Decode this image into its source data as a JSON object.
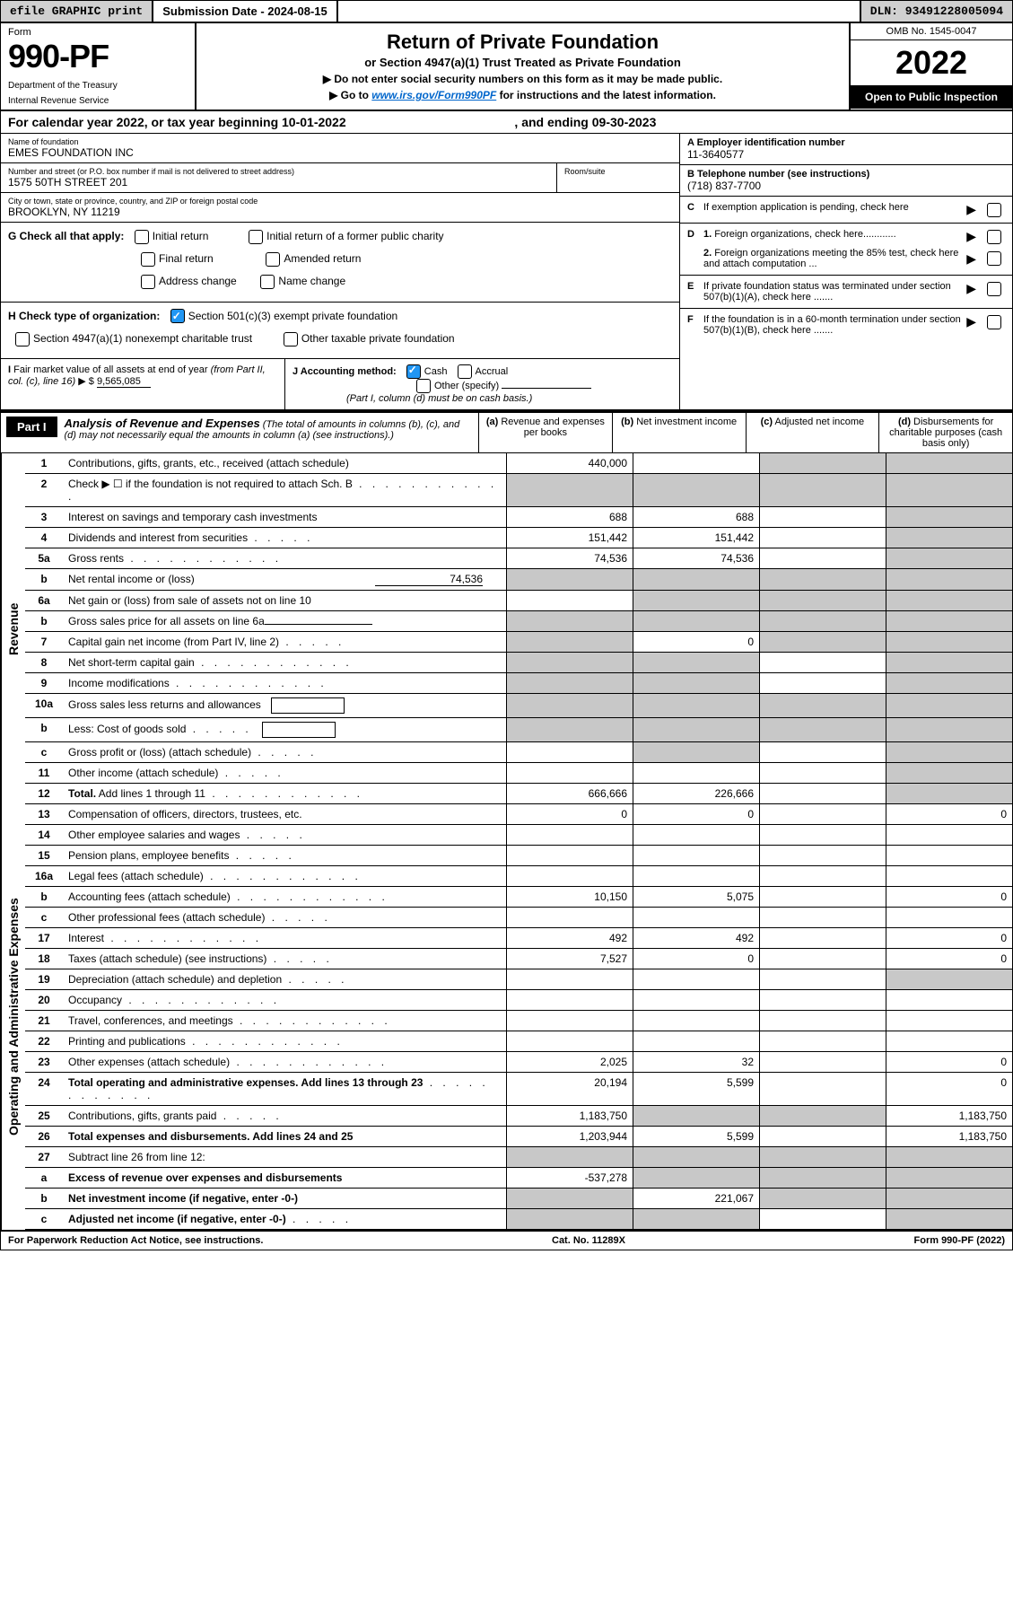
{
  "colors": {
    "page_bg": "#ffffff",
    "text": "#000000",
    "shaded_cell": "#c8c8c8",
    "top_bar_bg": "#d0d0d0",
    "link": "#0066cc",
    "checkbox_checked": "#2196f3",
    "black": "#000000",
    "white": "#ffffff"
  },
  "top_bar": {
    "efile": "efile GRAPHIC print",
    "submission": "Submission Date - 2024-08-15",
    "dln": "DLN: 93491228005094"
  },
  "header": {
    "form_label": "Form",
    "form_number": "990-PF",
    "dept": "Department of the Treasury",
    "irs": "Internal Revenue Service",
    "title": "Return of Private Foundation",
    "subtitle": "or Section 4947(a)(1) Trust Treated as Private Foundation",
    "instr1": "▶ Do not enter social security numbers on this form as it may be made public.",
    "instr2_prefix": "▶ Go to ",
    "instr2_link": "www.irs.gov/Form990PF",
    "instr2_suffix": " for instructions and the latest information.",
    "omb": "OMB No. 1545-0047",
    "year": "2022",
    "open": "Open to Public Inspection"
  },
  "cal_year": {
    "prefix": "For calendar year 2022, or tax year beginning ",
    "begin": "10-01-2022",
    "middle": " , and ending ",
    "end": "09-30-2023"
  },
  "org": {
    "name_label": "Name of foundation",
    "name": "EMES FOUNDATION INC",
    "addr_label": "Number and street (or P.O. box number if mail is not delivered to street address)",
    "addr": "1575 50TH STREET 201",
    "room_label": "Room/suite",
    "city_label": "City or town, state or province, country, and ZIP or foreign postal code",
    "city": "BROOKLYN, NY  11219"
  },
  "right_info": {
    "a_label": "A Employer identification number",
    "a_value": "11-3640577",
    "b_label": "B Telephone number (see instructions)",
    "b_value": "(718) 837-7700",
    "c_text": "If exemption application is pending, check here",
    "d1_text": "Foreign organizations, check here............",
    "d2_text": "Foreign organizations meeting the 85% test, check here and attach computation ...",
    "e_text": "If private foundation status was terminated under section 507(b)(1)(A), check here .......",
    "f_text": "If the foundation is in a 60-month termination under section 507(b)(1)(B), check here ......."
  },
  "g": {
    "label": "G Check all that apply:",
    "initial_return": "Initial return",
    "initial_former": "Initial return of a former public charity",
    "final_return": "Final return",
    "amended": "Amended return",
    "address_change": "Address change",
    "name_change": "Name change"
  },
  "h": {
    "label": "H Check type of organization:",
    "opt1": "Section 501(c)(3) exempt private foundation",
    "opt2": "Section 4947(a)(1) nonexempt charitable trust",
    "opt3": "Other taxable private foundation"
  },
  "i": {
    "label": "I Fair market value of all assets at end of year (from Part II, col. (c), line 16) ▶ $",
    "value": "9,565,085"
  },
  "j": {
    "label": "J Accounting method:",
    "cash": "Cash",
    "accrual": "Accrual",
    "other": "Other (specify)",
    "note": "(Part I, column (d) must be on cash basis.)"
  },
  "part1": {
    "label": "Part I",
    "title": "Analysis of Revenue and Expenses",
    "subtitle": " (The total of amounts in columns (b), (c), and (d) may not necessarily equal the amounts in column (a) (see instructions).)"
  },
  "columns": {
    "a": "(a) Revenue and expenses per books",
    "b": "(b) Net investment income",
    "c": "(c) Adjusted net income",
    "d": "(d) Disbursements for charitable purposes (cash basis only)"
  },
  "side_labels": {
    "revenue": "Revenue",
    "expenses": "Operating and Administrative Expenses"
  },
  "rows": [
    {
      "num": "1",
      "desc": "Contributions, gifts, grants, etc., received (attach schedule)",
      "a": "440,000",
      "b": "",
      "c_sh": true,
      "d_sh": true
    },
    {
      "num": "2",
      "desc": "Check ▶ ☐ if the foundation is not required to attach Sch. B",
      "dots": true,
      "a_sh": true,
      "b_sh": true,
      "c_sh": true,
      "d_sh": true
    },
    {
      "num": "3",
      "desc": "Interest on savings and temporary cash investments",
      "a": "688",
      "b": "688",
      "d_sh": true
    },
    {
      "num": "4",
      "desc": "Dividends and interest from securities",
      "dots": "short",
      "a": "151,442",
      "b": "151,442",
      "d_sh": true
    },
    {
      "num": "5a",
      "desc": "Gross rents",
      "dots": true,
      "a": "74,536",
      "b": "74,536",
      "d_sh": true
    },
    {
      "num": "b",
      "desc": "Net rental income or (loss)",
      "inline_val": "74,536",
      "a_sh": true,
      "b_sh": true,
      "c_sh": true,
      "d_sh": true
    },
    {
      "num": "6a",
      "desc": "Net gain or (loss) from sale of assets not on line 10",
      "b_sh": true,
      "c_sh": true,
      "d_sh": true
    },
    {
      "num": "b",
      "desc": "Gross sales price for all assets on line 6a",
      "underline": true,
      "a_sh": true,
      "b_sh": true,
      "c_sh": true,
      "d_sh": true
    },
    {
      "num": "7",
      "desc": "Capital gain net income (from Part IV, line 2)",
      "dots": "short",
      "a_sh": true,
      "b": "0",
      "c_sh": true,
      "d_sh": true
    },
    {
      "num": "8",
      "desc": "Net short-term capital gain",
      "dots": true,
      "a_sh": true,
      "b_sh": true,
      "d_sh": true
    },
    {
      "num": "9",
      "desc": "Income modifications",
      "dots": true,
      "a_sh": true,
      "b_sh": true,
      "d_sh": true
    },
    {
      "num": "10a",
      "desc": "Gross sales less returns and allowances",
      "box": true,
      "a_sh": true,
      "b_sh": true,
      "c_sh": true,
      "d_sh": true
    },
    {
      "num": "b",
      "desc": "Less: Cost of goods sold",
      "dots": "short",
      "box": true,
      "a_sh": true,
      "b_sh": true,
      "c_sh": true,
      "d_sh": true
    },
    {
      "num": "c",
      "desc": "Gross profit or (loss) (attach schedule)",
      "dots": "short",
      "b_sh": true,
      "d_sh": true
    },
    {
      "num": "11",
      "desc": "Other income (attach schedule)",
      "dots": "short",
      "d_sh": true
    },
    {
      "num": "12",
      "desc": "Total. Add lines 1 through 11",
      "dots": true,
      "bold": true,
      "a": "666,666",
      "b": "226,666",
      "d_sh": true
    }
  ],
  "exp_rows": [
    {
      "num": "13",
      "desc": "Compensation of officers, directors, trustees, etc.",
      "a": "0",
      "b": "0",
      "d": "0"
    },
    {
      "num": "14",
      "desc": "Other employee salaries and wages",
      "dots": "short"
    },
    {
      "num": "15",
      "desc": "Pension plans, employee benefits",
      "dots": "short"
    },
    {
      "num": "16a",
      "desc": "Legal fees (attach schedule)",
      "dots": true
    },
    {
      "num": "b",
      "desc": "Accounting fees (attach schedule)",
      "dots": true,
      "a": "10,150",
      "b": "5,075",
      "d": "0"
    },
    {
      "num": "c",
      "desc": "Other professional fees (attach schedule)",
      "dots": "short"
    },
    {
      "num": "17",
      "desc": "Interest",
      "dots": true,
      "a": "492",
      "b": "492",
      "d": "0"
    },
    {
      "num": "18",
      "desc": "Taxes (attach schedule) (see instructions)",
      "dots": "short",
      "a": "7,527",
      "b": "0",
      "d": "0"
    },
    {
      "num": "19",
      "desc": "Depreciation (attach schedule) and depletion",
      "dots": "short",
      "d_sh": true
    },
    {
      "num": "20",
      "desc": "Occupancy",
      "dots": true
    },
    {
      "num": "21",
      "desc": "Travel, conferences, and meetings",
      "dots": true
    },
    {
      "num": "22",
      "desc": "Printing and publications",
      "dots": true
    },
    {
      "num": "23",
      "desc": "Other expenses (attach schedule)",
      "dots": true,
      "a": "2,025",
      "b": "32",
      "d": "0"
    },
    {
      "num": "24",
      "desc": "Total operating and administrative expenses. Add lines 13 through 23",
      "dots": true,
      "bold": true,
      "a": "20,194",
      "b": "5,599",
      "d": "0"
    },
    {
      "num": "25",
      "desc": "Contributions, gifts, grants paid",
      "dots": "short",
      "a": "1,183,750",
      "b_sh": true,
      "c_sh": true,
      "d": "1,183,750"
    },
    {
      "num": "26",
      "desc": "Total expenses and disbursements. Add lines 24 and 25",
      "bold": true,
      "a": "1,203,944",
      "b": "5,599",
      "d": "1,183,750"
    },
    {
      "num": "27",
      "desc": "Subtract line 26 from line 12:",
      "a_sh": true,
      "b_sh": true,
      "c_sh": true,
      "d_sh": true
    },
    {
      "num": "a",
      "desc": "Excess of revenue over expenses and disbursements",
      "bold": true,
      "a": "-537,278",
      "b_sh": true,
      "c_sh": true,
      "d_sh": true
    },
    {
      "num": "b",
      "desc": "Net investment income (if negative, enter -0-)",
      "bold": true,
      "a_sh": true,
      "b": "221,067",
      "c_sh": true,
      "d_sh": true
    },
    {
      "num": "c",
      "desc": "Adjusted net income (if negative, enter -0-)",
      "dots": "short",
      "bold": true,
      "a_sh": true,
      "b_sh": true,
      "d_sh": true
    }
  ],
  "footer": {
    "left": "For Paperwork Reduction Act Notice, see instructions.",
    "center": "Cat. No. 11289X",
    "right": "Form 990-PF (2022)"
  }
}
